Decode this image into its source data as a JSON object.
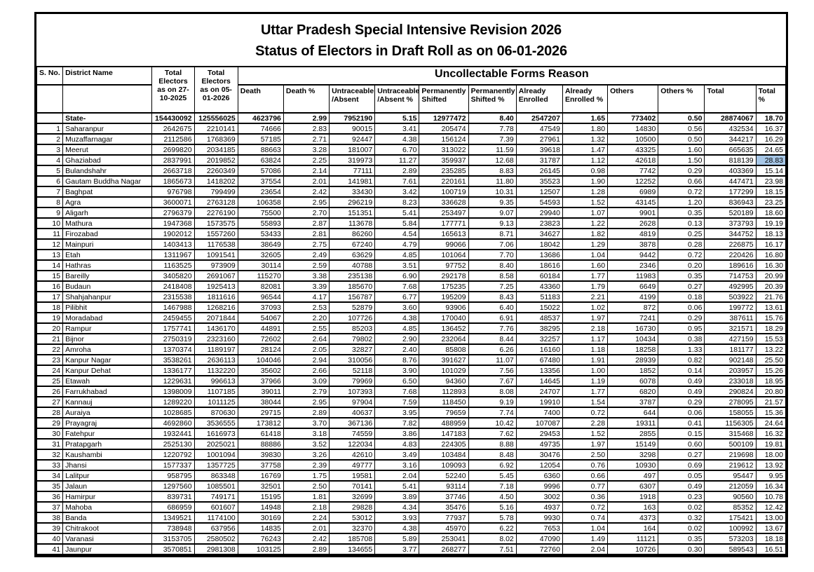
{
  "titles": {
    "line1": "Uttar Pradesh Special Intensive Revision 2026",
    "line2": "Status of Electors in Draft Roll as on 06-01-2026"
  },
  "table": {
    "header": {
      "s_no": "S. No.",
      "district_name": "District Name",
      "total_electors_2025": "Total Electors as on 27-10-2025",
      "total_electors_2026": "Total Electors as on 05-01-2026",
      "group": "Uncollectable Forms Reason",
      "sub_columns": [
        "Death",
        "Death %",
        "Untraceable\n/Absent",
        "Untraceable\n/Absent %",
        "Permanently\nShifted",
        "Permanently\nShifted %",
        "Already\nEnrolled",
        "Already\nEnrolled %",
        "Others",
        "Others %",
        "Total",
        "Total %"
      ]
    },
    "state_row": [
      "",
      "State-",
      "154430092",
      "125556025",
      "4623796",
      "2.99",
      "7952190",
      "5.15",
      "12977472",
      "8.40",
      "2547207",
      "1.65",
      "773402",
      "0.50",
      "28874067",
      "18.70"
    ],
    "rows": [
      [
        "1",
        "Saharanpur",
        "2642675",
        "2210141",
        "74666",
        "2.83",
        "90015",
        "3.41",
        "205474",
        "7.78",
        "47549",
        "1.80",
        "14830",
        "0.56",
        "432534",
        "16.37"
      ],
      [
        "2",
        "Muzaffarnagar",
        "2112586",
        "1768369",
        "57185",
        "2.71",
        "92447",
        "4.38",
        "156124",
        "7.39",
        "27961",
        "1.32",
        "10500",
        "0.50",
        "344217",
        "16.29"
      ],
      [
        "3",
        "Meerut",
        "2699820",
        "2034185",
        "88663",
        "3.28",
        "181007",
        "6.70",
        "313022",
        "11.59",
        "39618",
        "1.47",
        "43325",
        "1.60",
        "665635",
        "24.65"
      ],
      [
        "4",
        "Ghaziabad",
        "2837991",
        "2019852",
        "63824",
        "2.25",
        "319973",
        "11.27",
        "359937",
        "12.68",
        "31787",
        "1.12",
        "42618",
        "1.50",
        "818139",
        "28.83"
      ],
      [
        "5",
        "Bulandshahr",
        "2663718",
        "2260349",
        "57086",
        "2.14",
        "77111",
        "2.89",
        "235285",
        "8.83",
        "26145",
        "0.98",
        "7742",
        "0.29",
        "403369",
        "15.14"
      ],
      [
        "6",
        "Gautam Buddha Nagar",
        "1865673",
        "1418202",
        "37554",
        "2.01",
        "141981",
        "7.61",
        "220161",
        "11.80",
        "35523",
        "1.90",
        "12252",
        "0.66",
        "447471",
        "23.98"
      ],
      [
        "7",
        "Baghpat",
        "976798",
        "799499",
        "23654",
        "2.42",
        "33430",
        "3.42",
        "100719",
        "10.31",
        "12507",
        "1.28",
        "6989",
        "0.72",
        "177299",
        "18.15"
      ],
      [
        "8",
        "Agra",
        "3600071",
        "2763128",
        "106358",
        "2.95",
        "296219",
        "8.23",
        "336628",
        "9.35",
        "54593",
        "1.52",
        "43145",
        "1.20",
        "836943",
        "23.25"
      ],
      [
        "9",
        "Aligarh",
        "2796379",
        "2276190",
        "75500",
        "2.70",
        "151351",
        "5.41",
        "253497",
        "9.07",
        "29940",
        "1.07",
        "9901",
        "0.35",
        "520189",
        "18.60"
      ],
      [
        "10",
        "Mathura",
        "1947368",
        "1573575",
        "55893",
        "2.87",
        "113678",
        "5.84",
        "177771",
        "9.13",
        "23823",
        "1.22",
        "2628",
        "0.13",
        "373793",
        "19.19"
      ],
      [
        "11",
        "Firozabad",
        "1902012",
        "1557260",
        "53433",
        "2.81",
        "86260",
        "4.54",
        "165613",
        "8.71",
        "34627",
        "1.82",
        "4819",
        "0.25",
        "344752",
        "18.13"
      ],
      [
        "12",
        "Mainpuri",
        "1403413",
        "1176538",
        "38649",
        "2.75",
        "67240",
        "4.79",
        "99066",
        "7.06",
        "18042",
        "1.29",
        "3878",
        "0.28",
        "226875",
        "16.17"
      ],
      [
        "13",
        "Etah",
        "1311967",
        "1091541",
        "32605",
        "2.49",
        "63629",
        "4.85",
        "101064",
        "7.70",
        "13686",
        "1.04",
        "9442",
        "0.72",
        "220426",
        "16.80"
      ],
      [
        "14",
        "Hathras",
        "1163525",
        "973909",
        "30114",
        "2.59",
        "40788",
        "3.51",
        "97752",
        "8.40",
        "18616",
        "1.60",
        "2346",
        "0.20",
        "189616",
        "16.30"
      ],
      [
        "15",
        "Bareilly",
        "3405820",
        "2691067",
        "115270",
        "3.38",
        "235138",
        "6.90",
        "292178",
        "8.58",
        "60184",
        "1.77",
        "11983",
        "0.35",
        "714753",
        "20.99"
      ],
      [
        "16",
        "Budaun",
        "2418408",
        "1925413",
        "82081",
        "3.39",
        "185670",
        "7.68",
        "175235",
        "7.25",
        "43360",
        "1.79",
        "6649",
        "0.27",
        "492995",
        "20.39"
      ],
      [
        "17",
        "Shahjahanpur",
        "2315538",
        "1811616",
        "96544",
        "4.17",
        "156787",
        "6.77",
        "195209",
        "8.43",
        "51183",
        "2.21",
        "4199",
        "0.18",
        "503922",
        "21.76"
      ],
      [
        "18",
        "Pilibhit",
        "1467988",
        "1268216",
        "37093",
        "2.53",
        "52879",
        "3.60",
        "93906",
        "6.40",
        "15022",
        "1.02",
        "872",
        "0.06",
        "199772",
        "13.61"
      ],
      [
        "19",
        "Moradabad",
        "2459455",
        "2071844",
        "54067",
        "2.20",
        "107726",
        "4.38",
        "170040",
        "6.91",
        "48537",
        "1.97",
        "7241",
        "0.29",
        "387611",
        "15.76"
      ],
      [
        "20",
        "Rampur",
        "1757741",
        "1436170",
        "44891",
        "2.55",
        "85203",
        "4.85",
        "136452",
        "7.76",
        "38295",
        "2.18",
        "16730",
        "0.95",
        "321571",
        "18.29"
      ],
      [
        "21",
        "Bijnor",
        "2750319",
        "2323160",
        "72602",
        "2.64",
        "79802",
        "2.90",
        "232064",
        "8.44",
        "32257",
        "1.17",
        "10434",
        "0.38",
        "427159",
        "15.53"
      ],
      [
        "22",
        "Amroha",
        "1370374",
        "1189197",
        "28124",
        "2.05",
        "32827",
        "2.40",
        "85808",
        "6.26",
        "16160",
        "1.18",
        "18258",
        "1.33",
        "181177",
        "13.22"
      ],
      [
        "23",
        "Kanpur Nagar",
        "3538261",
        "2636113",
        "104046",
        "2.94",
        "310056",
        "8.76",
        "391627",
        "11.07",
        "67480",
        "1.91",
        "28939",
        "0.82",
        "902148",
        "25.50"
      ],
      [
        "24",
        "Kanpur Dehat",
        "1336177",
        "1132220",
        "35602",
        "2.66",
        "52118",
        "3.90",
        "101029",
        "7.56",
        "13356",
        "1.00",
        "1852",
        "0.14",
        "203957",
        "15.26"
      ],
      [
        "25",
        "Etawah",
        "1229631",
        "996613",
        "37966",
        "3.09",
        "79969",
        "6.50",
        "94360",
        "7.67",
        "14645",
        "1.19",
        "6078",
        "0.49",
        "233018",
        "18.95"
      ],
      [
        "26",
        "Farrukhabad",
        "1398009",
        "1107185",
        "39011",
        "2.79",
        "107393",
        "7.68",
        "112893",
        "8.08",
        "24707",
        "1.77",
        "6820",
        "0.49",
        "290824",
        "20.80"
      ],
      [
        "27",
        "Kannauj",
        "1289220",
        "1011125",
        "38044",
        "2.95",
        "97904",
        "7.59",
        "118450",
        "9.19",
        "19910",
        "1.54",
        "3787",
        "0.29",
        "278095",
        "21.57"
      ],
      [
        "28",
        "Auraiya",
        "1028685",
        "870630",
        "29715",
        "2.89",
        "40637",
        "3.95",
        "79659",
        "7.74",
        "7400",
        "0.72",
        "644",
        "0.06",
        "158055",
        "15.36"
      ],
      [
        "29",
        "Prayagraj",
        "4692860",
        "3536555",
        "173812",
        "3.70",
        "367136",
        "7.82",
        "488959",
        "10.42",
        "107087",
        "2.28",
        "19311",
        "0.41",
        "1156305",
        "24.64"
      ],
      [
        "30",
        "Fatehpur",
        "1932441",
        "1616973",
        "61418",
        "3.18",
        "74559",
        "3.86",
        "147183",
        "7.62",
        "29453",
        "1.52",
        "2855",
        "0.15",
        "315468",
        "16.32"
      ],
      [
        "31",
        "Pratapgarh",
        "2525130",
        "2025021",
        "88886",
        "3.52",
        "122034",
        "4.83",
        "224305",
        "8.88",
        "49735",
        "1.97",
        "15149",
        "0.60",
        "500109",
        "19.81"
      ],
      [
        "32",
        "Kaushambi",
        "1220792",
        "1001094",
        "39830",
        "3.26",
        "42610",
        "3.49",
        "103484",
        "8.48",
        "30476",
        "2.50",
        "3298",
        "0.27",
        "219698",
        "18.00"
      ],
      [
        "33",
        "Jhansi",
        "1577337",
        "1357725",
        "37758",
        "2.39",
        "49777",
        "3.16",
        "109093",
        "6.92",
        "12054",
        "0.76",
        "10930",
        "0.69",
        "219612",
        "13.92"
      ],
      [
        "34",
        "Lalitpur",
        "958795",
        "863348",
        "16769",
        "1.75",
        "19581",
        "2.04",
        "52240",
        "5.45",
        "6360",
        "0.66",
        "497",
        "0.05",
        "95447",
        "9.95"
      ],
      [
        "35",
        "Jalaun",
        "1297560",
        "1085501",
        "32501",
        "2.50",
        "70141",
        "5.41",
        "93114",
        "7.18",
        "9996",
        "0.77",
        "6307",
        "0.49",
        "212059",
        "16.34"
      ],
      [
        "36",
        "Hamirpur",
        "839731",
        "749171",
        "15195",
        "1.81",
        "32699",
        "3.89",
        "37746",
        "4.50",
        "3002",
        "0.36",
        "1918",
        "0.23",
        "90560",
        "10.78"
      ],
      [
        "37",
        "Mahoba",
        "686959",
        "601607",
        "14948",
        "2.18",
        "29828",
        "4.34",
        "35476",
        "5.16",
        "4937",
        "0.72",
        "163",
        "0.02",
        "85352",
        "12.42"
      ],
      [
        "38",
        "Banda",
        "1349521",
        "1174100",
        "30169",
        "2.24",
        "53012",
        "3.93",
        "77937",
        "5.78",
        "9930",
        "0.74",
        "4373",
        "0.32",
        "175421",
        "13.00"
      ],
      [
        "39",
        "Chitrakoot",
        "738948",
        "637956",
        "14835",
        "2.01",
        "32370",
        "4.38",
        "45970",
        "6.22",
        "7653",
        "1.04",
        "164",
        "0.02",
        "100992",
        "13.67"
      ],
      [
        "40",
        "Varanasi",
        "3153705",
        "2580502",
        "76243",
        "2.42",
        "185708",
        "5.89",
        "253041",
        "8.02",
        "47090",
        "1.49",
        "11121",
        "0.35",
        "573203",
        "18.18"
      ],
      [
        "41",
        "Jaunpur",
        "3570851",
        "2981308",
        "103125",
        "2.89",
        "134655",
        "3.77",
        "268277",
        "7.51",
        "72760",
        "2.04",
        "10726",
        "0.30",
        "589543",
        "16.51"
      ]
    ]
  },
  "highlight": {
    "row_serial": "4",
    "district": "Ghaziabad",
    "cell_index": 15,
    "value": "28.83",
    "color": "#a7c7e7"
  },
  "column_names": [
    "s-no",
    "district-name",
    "total-electors-2025",
    "total-electors-2026",
    "death",
    "death-pct",
    "untraceable-absent",
    "untraceable-absent-pct",
    "permanently-shifted",
    "permanently-shifted-pct",
    "already-enrolled",
    "already-enrolled-pct",
    "others",
    "others-pct",
    "total",
    "total-pct"
  ]
}
